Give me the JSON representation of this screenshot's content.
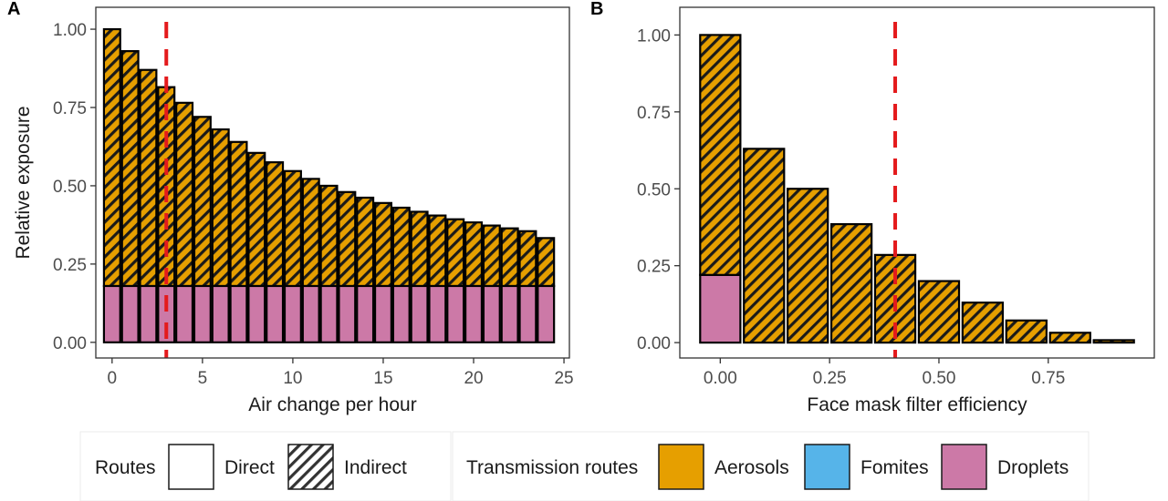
{
  "colors": {
    "aerosols": "#E69F00",
    "fomites": "#56B4E9",
    "droplets": "#CC79A7",
    "reference_line": "#E41A1C",
    "hatch": "#1a1a1a"
  },
  "chart_data": [
    {
      "panel": "A",
      "type": "bar",
      "stacked": true,
      "xlabel": "Air change per hour",
      "ylabel": "Relative exposure",
      "x": [
        0,
        1,
        2,
        3,
        4,
        5,
        6,
        7,
        8,
        9,
        10,
        11,
        12,
        13,
        14,
        15,
        16,
        17,
        18,
        19,
        20,
        21,
        22,
        23,
        24
      ],
      "series": [
        {
          "name": "Droplets",
          "route": "Direct",
          "values": [
            0.18,
            0.18,
            0.18,
            0.18,
            0.18,
            0.18,
            0.18,
            0.18,
            0.18,
            0.18,
            0.18,
            0.18,
            0.18,
            0.18,
            0.18,
            0.18,
            0.18,
            0.18,
            0.18,
            0.18,
            0.18,
            0.18,
            0.18,
            0.18,
            0.18
          ]
        },
        {
          "name": "Aerosols",
          "route": "Indirect",
          "values": [
            0.82,
            0.75,
            0.69,
            0.635,
            0.585,
            0.54,
            0.5,
            0.46,
            0.425,
            0.395,
            0.367,
            0.342,
            0.32,
            0.3,
            0.282,
            0.265,
            0.25,
            0.237,
            0.225,
            0.213,
            0.203,
            0.193,
            0.184,
            0.175,
            0.153
          ]
        }
      ],
      "reference_line": {
        "x": 3
      },
      "xlim": [
        -0.9,
        25.3
      ],
      "xticks": [
        0,
        5,
        10,
        15,
        20,
        25
      ],
      "ylim": [
        -0.05,
        1.07
      ],
      "yticks": [
        0.0,
        0.25,
        0.5,
        0.75,
        1.0
      ],
      "ytick_labels": [
        "0.00",
        "0.25",
        "0.50",
        "0.75",
        "1.00"
      ],
      "grid": false
    },
    {
      "panel": "B",
      "type": "bar",
      "stacked": true,
      "xlabel": "Face mask filter efficiency",
      "ylabel": "",
      "x": [
        0.0,
        0.1,
        0.2,
        0.3,
        0.4,
        0.5,
        0.6,
        0.7,
        0.8,
        0.9
      ],
      "series": [
        {
          "name": "Droplets",
          "route": "Direct",
          "values": [
            0.22,
            0,
            0,
            0,
            0,
            0,
            0,
            0,
            0,
            0
          ]
        },
        {
          "name": "Aerosols",
          "route": "Indirect",
          "values": [
            0.78,
            0.63,
            0.5,
            0.385,
            0.285,
            0.2,
            0.13,
            0.072,
            0.032,
            0.008
          ]
        }
      ],
      "reference_line": {
        "x": 0.4
      },
      "xlim": [
        -0.0925,
        0.9925
      ],
      "xticks": [
        0.0,
        0.25,
        0.5,
        0.75
      ],
      "xtick_labels": [
        "0.00",
        "0.25",
        "0.50",
        "0.75"
      ],
      "ylim": [
        -0.05,
        1.09
      ],
      "yticks": [
        0.0,
        0.25,
        0.5,
        0.75,
        1.0
      ],
      "ytick_labels": [
        "0.00",
        "0.25",
        "0.50",
        "0.75",
        "1.00"
      ],
      "grid": false
    }
  ],
  "legend": {
    "position": "bottom",
    "routes": {
      "title": "Routes",
      "items": [
        {
          "label": "Direct",
          "pattern": "none"
        },
        {
          "label": "Indirect",
          "pattern": "stripe"
        }
      ]
    },
    "transmission": {
      "title": "Transmission routes",
      "items": [
        {
          "label": "Aerosols",
          "color": "#E69F00"
        },
        {
          "label": "Fomites",
          "color": "#56B4E9"
        },
        {
          "label": "Droplets",
          "color": "#CC79A7"
        }
      ]
    }
  }
}
